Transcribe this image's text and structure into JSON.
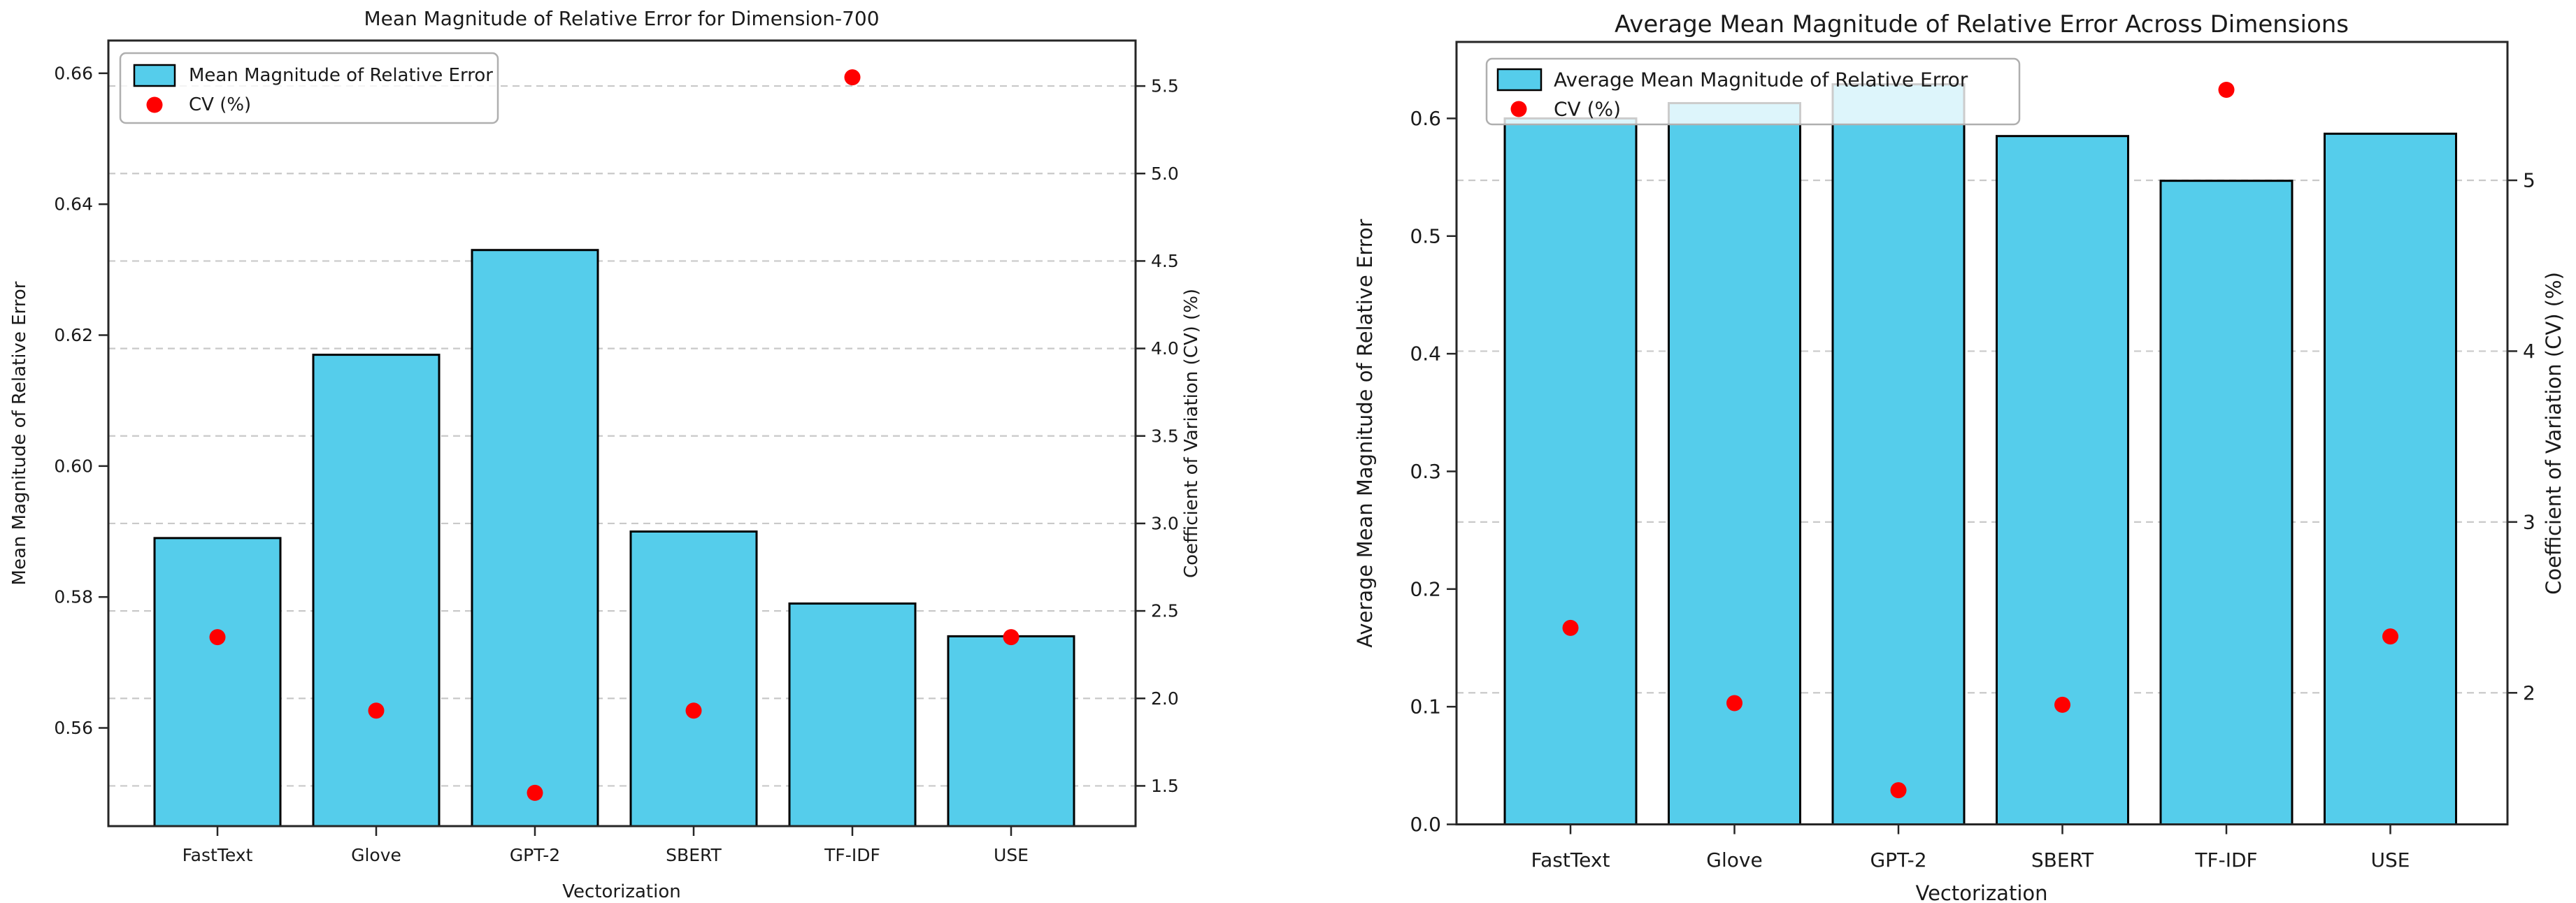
{
  "page": {
    "background": "#FFFFFF"
  },
  "chart_data": [
    {
      "type": "bar",
      "panel": "left",
      "title": "Mean Magnitude of Relative Error for Dimension-700",
      "xlabel": "Vectorization",
      "ylabel": "Mean Magnitude of Relative Error",
      "ylabel_right": "Coefficient of Variation (CV) (%)",
      "categories": [
        "FastText",
        "Glove",
        "GPT-2",
        "SBERT",
        "TF-IDF",
        "USE"
      ],
      "series": [
        {
          "name": "Mean Magnitude of Relative Error",
          "type": "bar",
          "axis": "left",
          "values": [
            0.589,
            0.617,
            0.633,
            0.59,
            0.579,
            0.574
          ]
        },
        {
          "name": "CV (%)",
          "type": "scatter",
          "axis": "right",
          "values": [
            2.35,
            1.93,
            1.46,
            1.93,
            5.55,
            2.35
          ]
        }
      ],
      "left_ticks": {
        "values": [
          0.56,
          0.58,
          0.6,
          0.62,
          0.64,
          0.66
        ],
        "labels": [
          "0.56",
          "0.58",
          "0.60",
          "0.62",
          "0.64",
          "0.66"
        ]
      },
      "right_ticks": {
        "values": [
          1.5,
          2.0,
          2.5,
          3.0,
          3.5,
          4.0,
          4.5,
          5.0,
          5.5
        ],
        "labels": [
          "1.5",
          "2.0",
          "2.5",
          "3.0",
          "3.5",
          "4.0",
          "4.5",
          "5.0",
          "5.5"
        ]
      },
      "ylim_left": [
        0.545,
        0.665
      ],
      "ylim_right": [
        1.27,
        5.76
      ],
      "grid": "dashed horizontal lines at right-axis ticks",
      "legend": {
        "position": "upper left",
        "entries": [
          "Mean Magnitude of Relative Error",
          "CV (%)"
        ]
      },
      "colors": {
        "bar": "#55CDEB",
        "bar_edge": "#000000",
        "dot": "#FF0000",
        "grid": "#C9C9C9",
        "spine": "#262626",
        "legend_frame": "#AFAFAF"
      }
    },
    {
      "type": "bar",
      "panel": "right",
      "title": "Average Mean Magnitude of Relative Error Across Dimensions",
      "xlabel": "Vectorization",
      "ylabel": "Average Mean Magnitude of Relative Error",
      "ylabel_right": "Coefficient of Variation (CV) (%)",
      "categories": [
        "FastText",
        "Glove",
        "GPT-2",
        "SBERT",
        "TF-IDF",
        "USE"
      ],
      "series": [
        {
          "name": "Average Mean Magnitude of Relative Error",
          "type": "bar",
          "axis": "left",
          "values": [
            0.6,
            0.613,
            0.629,
            0.585,
            0.547,
            0.587
          ]
        },
        {
          "name": "CV (%)",
          "type": "scatter",
          "axis": "right",
          "values": [
            2.38,
            1.94,
            1.43,
            1.93,
            5.53,
            2.33
          ]
        }
      ],
      "left_ticks": {
        "values": [
          0.0,
          0.1,
          0.2,
          0.3,
          0.4,
          0.5,
          0.6
        ],
        "labels": [
          "0.0",
          "0.1",
          "0.2",
          "0.3",
          "0.4",
          "0.5",
          "0.6"
        ]
      },
      "right_ticks": {
        "values": [
          2,
          3,
          4,
          5
        ],
        "labels": [
          "2",
          "3",
          "4",
          "5"
        ]
      },
      "ylim_left": [
        0.0,
        0.665
      ],
      "ylim_right": [
        1.23,
        5.81
      ],
      "grid": "dashed horizontal lines at right-axis ticks",
      "legend": {
        "position": "upper left",
        "entries": [
          "Average Mean Magnitude of Relative Error",
          "CV (%)"
        ]
      },
      "colors": {
        "bar": "#55CDEB",
        "bar_edge": "#000000",
        "dot": "#FF0000",
        "grid": "#C9C9C9",
        "spine": "#262626",
        "legend_frame": "#AFAFAF"
      }
    }
  ]
}
